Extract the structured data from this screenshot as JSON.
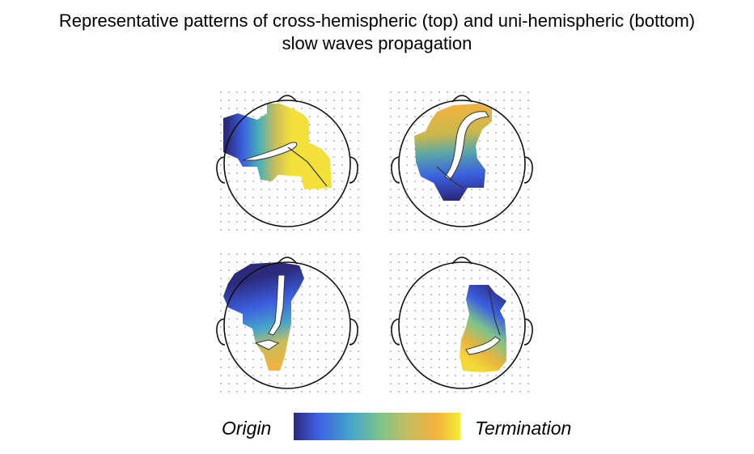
{
  "title": {
    "line1": "Representative patterns of cross-hemispheric (top) and uni-hemispheric (bottom)",
    "line2": "slow waves propagation"
  },
  "panels": [
    {
      "name": "cross-hemispheric-1",
      "row": "top"
    },
    {
      "name": "cross-hemispheric-2",
      "row": "top"
    },
    {
      "name": "uni-hemispheric-1",
      "row": "bottom"
    },
    {
      "name": "uni-hemispheric-2",
      "row": "bottom"
    }
  ],
  "legend": {
    "origin_label": "Origin",
    "termination_label": "Termination",
    "colors": [
      "#2b2a7c",
      "#3b5fe0",
      "#46a7c8",
      "#7ec48a",
      "#c9bd5a",
      "#f2b23e",
      "#f3ec34"
    ]
  }
}
